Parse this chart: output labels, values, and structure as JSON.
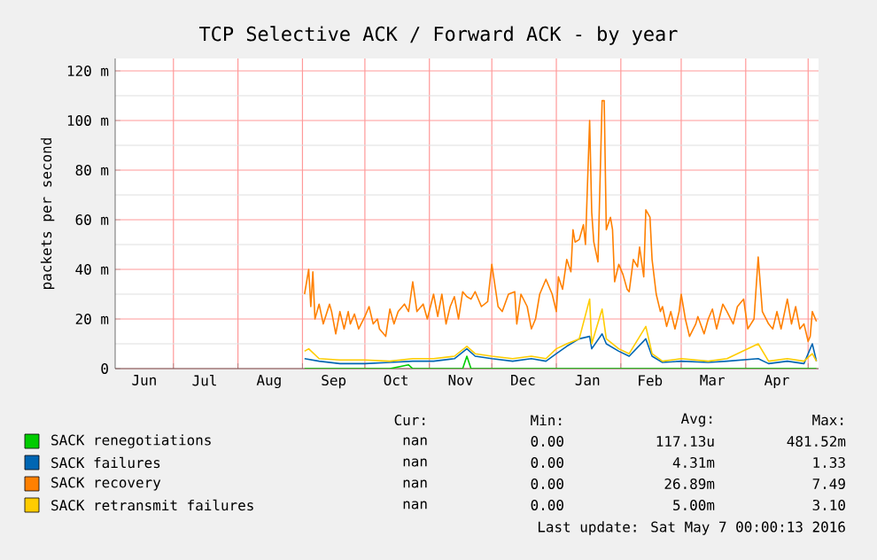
{
  "chart_data": {
    "type": "line",
    "title": "TCP Selective ACK / Forward ACK - by year",
    "ylabel": "packets per second",
    "xlim": [
      "2015-06-03",
      "2016-05-06"
    ],
    "ylim": [
      0,
      125
    ],
    "xticks": [
      {
        "value": "2015-07-01",
        "label": null
      },
      {
        "value": "2015-08-01",
        "label": null
      },
      {
        "value": "2015-09-01",
        "label": null
      },
      {
        "value": "2015-10-01",
        "label": null
      },
      {
        "value": "2015-11-01",
        "label": null
      },
      {
        "value": "2015-12-01",
        "label": null
      },
      {
        "value": "2016-01-01",
        "label": null
      },
      {
        "value": "2016-02-01",
        "label": null
      },
      {
        "value": "2016-03-01",
        "label": null
      },
      {
        "value": "2016-04-01",
        "label": null
      },
      {
        "value": "2016-05-01",
        "label": null
      },
      {
        "value": "2015-06-17",
        "label": "Jun"
      },
      {
        "value": "2015-07-16",
        "label": "Jul"
      },
      {
        "value": "2015-08-16",
        "label": "Aug"
      },
      {
        "value": "2015-09-16",
        "label": "Sep"
      },
      {
        "value": "2015-10-16",
        "label": "Oct"
      },
      {
        "value": "2015-11-16",
        "label": "Nov"
      },
      {
        "value": "2015-12-16",
        "label": "Dec"
      },
      {
        "value": "2016-01-16",
        "label": "Jan"
      },
      {
        "value": "2016-02-15",
        "label": "Feb"
      },
      {
        "value": "2016-03-16",
        "label": "Mar"
      },
      {
        "value": "2016-04-16",
        "label": "Apr"
      }
    ],
    "yticks": [
      0,
      {
        "value": 20,
        "label": "20 m"
      },
      {
        "value": 40,
        "label": "40 m"
      },
      {
        "value": 60,
        "label": "60 m"
      },
      {
        "value": 80,
        "label": "80 m"
      },
      {
        "value": 100,
        "label": "100 m"
      },
      {
        "value": 120,
        "label": "120 m"
      }
    ],
    "grid": true,
    "legend": "bottom",
    "marker": "none",
    "line_style": "solid",
    "series": [
      {
        "name": "SACK renegotiations",
        "color": "#00cc00",
        "x": [
          "2015-09-02",
          "2015-10-13",
          "2015-10-22",
          "2015-10-24",
          "2015-11-17",
          "2015-11-19",
          "2015-11-21",
          "2016-05-05"
        ],
        "values": [
          0,
          0,
          1.5,
          0,
          0,
          5,
          0,
          0
        ]
      },
      {
        "name": "SACK failures",
        "color": "#0066b3",
        "x": [
          "2015-09-02",
          "2015-09-09",
          "2015-09-19",
          "2015-10-01",
          "2015-10-13",
          "2015-10-24",
          "2015-11-03",
          "2015-11-13",
          "2015-11-19",
          "2015-11-23",
          "2015-12-01",
          "2015-12-11",
          "2015-12-20",
          "2015-12-27",
          "2016-01-01",
          "2016-01-06",
          "2016-01-12",
          "2016-01-17",
          "2016-01-18",
          "2016-01-23",
          "2016-01-25",
          "2016-01-31",
          "2016-02-05",
          "2016-02-13",
          "2016-02-16",
          "2016-02-21",
          "2016-03-01",
          "2016-03-14",
          "2016-03-23",
          "2016-04-07",
          "2016-04-12",
          "2016-04-21",
          "2016-04-29",
          "2016-05-03",
          "2016-05-05"
        ],
        "values": [
          4,
          3,
          2,
          2,
          2.5,
          3,
          3,
          4,
          8,
          5,
          4,
          3,
          4,
          3,
          6,
          9,
          12,
          13,
          8,
          14,
          10,
          7,
          5,
          12,
          5,
          2.5,
          3,
          2.5,
          3,
          4,
          2,
          3,
          2,
          10,
          3
        ]
      },
      {
        "name": "SACK recovery",
        "color": "#ff8000",
        "x": [
          "2015-09-02",
          "2015-09-04",
          "2015-09-05",
          "2015-09-06",
          "2015-09-07",
          "2015-09-09",
          "2015-09-11",
          "2015-09-14",
          "2015-09-15",
          "2015-09-17",
          "2015-09-19",
          "2015-09-21",
          "2015-09-23",
          "2015-09-24",
          "2015-09-26",
          "2015-09-28",
          "2015-10-01",
          "2015-10-03",
          "2015-10-05",
          "2015-10-07",
          "2015-10-08",
          "2015-10-11",
          "2015-10-13",
          "2015-10-15",
          "2015-10-17",
          "2015-10-20",
          "2015-10-22",
          "2015-10-24",
          "2015-10-26",
          "2015-10-29",
          "2015-10-31",
          "2015-11-03",
          "2015-11-05",
          "2015-11-07",
          "2015-11-09",
          "2015-11-11",
          "2015-11-13",
          "2015-11-15",
          "2015-11-17",
          "2015-11-19",
          "2015-11-21",
          "2015-11-23",
          "2015-11-26",
          "2015-11-29",
          "2015-12-01",
          "2015-12-04",
          "2015-12-06",
          "2015-12-09",
          "2015-12-12",
          "2015-12-13",
          "2015-12-15",
          "2015-12-18",
          "2015-12-20",
          "2015-12-22",
          "2015-12-24",
          "2015-12-27",
          "2015-12-30",
          "2016-01-01",
          "2016-01-02",
          "2016-01-04",
          "2016-01-06",
          "2016-01-08",
          "2016-01-09",
          "2016-01-10",
          "2016-01-12",
          "2016-01-14",
          "2016-01-15",
          "2016-01-17",
          "2016-01-18",
          "2016-01-19",
          "2016-01-21",
          "2016-01-23",
          "2016-01-24",
          "2016-01-25",
          "2016-01-27",
          "2016-01-28",
          "2016-01-29",
          "2016-01-31",
          "2016-02-02",
          "2016-02-04",
          "2016-02-05",
          "2016-02-07",
          "2016-02-09",
          "2016-02-10",
          "2016-02-12",
          "2016-02-13",
          "2016-02-15",
          "2016-02-16",
          "2016-02-18",
          "2016-02-20",
          "2016-02-21",
          "2016-02-23",
          "2016-02-25",
          "2016-02-27",
          "2016-02-29",
          "2016-03-01",
          "2016-03-03",
          "2016-03-05",
          "2016-03-08",
          "2016-03-09",
          "2016-03-12",
          "2016-03-14",
          "2016-03-16",
          "2016-03-18",
          "2016-03-21",
          "2016-03-23",
          "2016-03-26",
          "2016-03-28",
          "2016-03-31",
          "2016-04-02",
          "2016-04-05",
          "2016-04-07",
          "2016-04-09",
          "2016-04-12",
          "2016-04-14",
          "2016-04-16",
          "2016-04-18",
          "2016-04-21",
          "2016-04-23",
          "2016-04-25",
          "2016-04-27",
          "2016-04-29",
          "2016-05-01",
          "2016-05-02",
          "2016-05-03",
          "2016-05-05"
        ],
        "values": [
          30,
          40,
          25,
          39,
          20,
          26,
          18,
          26,
          23,
          14,
          23,
          16,
          23,
          18,
          22,
          16,
          21,
          25,
          18,
          20,
          16,
          13,
          24,
          18,
          23,
          26,
          23,
          35,
          23,
          26,
          20,
          30,
          21,
          30,
          18,
          25,
          29,
          20,
          31,
          29,
          28,
          31,
          25,
          27,
          42,
          25,
          23,
          30,
          31,
          18,
          30,
          25,
          16,
          20,
          30,
          36,
          30,
          23,
          37,
          32,
          44,
          39,
          56,
          51,
          52,
          58,
          50,
          100,
          63,
          51,
          43,
          108,
          108,
          56,
          61,
          56,
          35,
          42,
          38,
          32,
          31,
          44,
          41,
          49,
          37,
          64,
          61,
          44,
          30,
          23,
          25,
          17,
          23,
          16,
          23,
          30,
          20,
          13,
          18,
          21,
          14,
          20,
          24,
          16,
          26,
          23,
          18,
          25,
          28,
          16,
          20,
          45,
          23,
          18,
          16,
          23,
          16,
          28,
          18,
          25,
          16,
          18,
          11,
          13,
          23,
          19
        ]
      },
      {
        "name": "SACK retransmit failures",
        "color": "#ffcc00",
        "x": [
          "2015-09-02",
          "2015-09-04",
          "2015-09-09",
          "2015-09-19",
          "2015-10-01",
          "2015-10-13",
          "2015-10-24",
          "2015-11-03",
          "2015-11-13",
          "2015-11-19",
          "2015-11-23",
          "2015-12-01",
          "2015-12-11",
          "2015-12-20",
          "2015-12-27",
          "2016-01-01",
          "2016-01-06",
          "2016-01-12",
          "2016-01-17",
          "2016-01-18",
          "2016-01-23",
          "2016-01-25",
          "2016-01-31",
          "2016-02-05",
          "2016-02-13",
          "2016-02-16",
          "2016-02-21",
          "2016-03-01",
          "2016-03-14",
          "2016-03-23",
          "2016-04-07",
          "2016-04-12",
          "2016-04-21",
          "2016-04-29",
          "2016-05-03",
          "2016-05-05"
        ],
        "values": [
          7,
          8,
          4,
          3.5,
          3.5,
          3,
          4,
          4,
          5,
          9,
          6,
          5,
          4,
          5,
          4,
          8,
          10,
          12,
          28,
          10,
          24,
          12,
          8,
          6,
          17,
          6,
          3,
          4,
          3,
          4,
          10,
          3,
          4,
          3,
          6,
          3
        ]
      }
    ],
    "annotations": [
      "Cur:",
      "Min:",
      "Avg:",
      "Max:",
      "nan",
      "0.00",
      "117.13u",
      "481.52m",
      "nan",
      "0.00",
      "4.31m",
      "1.33",
      "nan",
      "0.00",
      "26.89m",
      "7.49",
      "nan",
      "0.00",
      "5.00m",
      "3.10",
      "Last update: Sat May 7 00:00:13 2016"
    ]
  }
}
